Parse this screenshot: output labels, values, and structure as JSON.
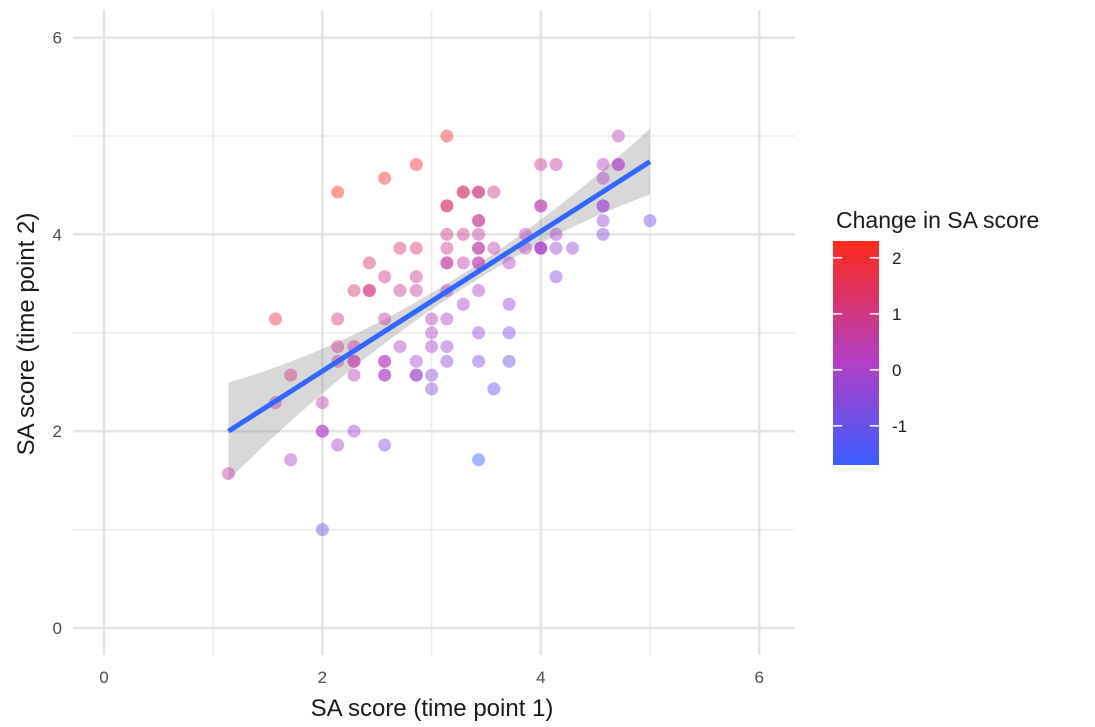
{
  "chart_data": {
    "type": "scatter",
    "xlabel": "SA score (time point 1)",
    "ylabel": "SA score (time point 2)",
    "xlim": [
      -0.2,
      6.2
    ],
    "ylim": [
      -0.3,
      6.2
    ],
    "xticks": [
      0,
      2,
      4,
      6
    ],
    "yticks": [
      0,
      2,
      4,
      6
    ],
    "grid": true,
    "legend": {
      "title": "Change in SA score",
      "position": "right",
      "type": "colorbar",
      "range": [
        -1.7,
        2.3
      ],
      "ticks": [
        2,
        1,
        0,
        -1
      ],
      "colors": {
        "low": "#3a5cff",
        "mid": "#b040c8",
        "high": "#ff2a1a"
      }
    },
    "points": [
      [
        1.14,
        1.57
      ],
      [
        1.57,
        2.29
      ],
      [
        1.57,
        3.14
      ],
      [
        1.71,
        2.57
      ],
      [
        1.71,
        1.71
      ],
      [
        2.0,
        2.29
      ],
      [
        2.0,
        2.0
      ],
      [
        2.0,
        2.0
      ],
      [
        2.0,
        1.0
      ],
      [
        2.14,
        4.43
      ],
      [
        2.14,
        3.14
      ],
      [
        2.14,
        2.86
      ],
      [
        2.14,
        2.71
      ],
      [
        2.14,
        1.86
      ],
      [
        2.29,
        3.43
      ],
      [
        2.29,
        2.86
      ],
      [
        2.29,
        2.71
      ],
      [
        2.29,
        2.71
      ],
      [
        2.29,
        2.57
      ],
      [
        2.29,
        2.0
      ],
      [
        2.43,
        3.71
      ],
      [
        2.43,
        3.43
      ],
      [
        2.43,
        3.43
      ],
      [
        2.57,
        4.57
      ],
      [
        2.57,
        3.57
      ],
      [
        2.57,
        3.14
      ],
      [
        2.57,
        2.71
      ],
      [
        2.57,
        2.71
      ],
      [
        2.57,
        2.57
      ],
      [
        2.57,
        2.57
      ],
      [
        2.57,
        1.86
      ],
      [
        2.71,
        3.86
      ],
      [
        2.71,
        3.43
      ],
      [
        2.71,
        2.86
      ],
      [
        2.86,
        4.71
      ],
      [
        2.86,
        3.86
      ],
      [
        2.86,
        3.57
      ],
      [
        2.86,
        3.43
      ],
      [
        2.86,
        2.71
      ],
      [
        2.86,
        2.57
      ],
      [
        2.86,
        2.57
      ],
      [
        3.0,
        3.14
      ],
      [
        3.0,
        3.0
      ],
      [
        3.0,
        2.86
      ],
      [
        3.0,
        2.57
      ],
      [
        3.0,
        2.43
      ],
      [
        3.14,
        5.0
      ],
      [
        3.14,
        4.29
      ],
      [
        3.14,
        4.29
      ],
      [
        3.14,
        4.0
      ],
      [
        3.14,
        3.86
      ],
      [
        3.14,
        3.71
      ],
      [
        3.14,
        3.71
      ],
      [
        3.14,
        3.43
      ],
      [
        3.14,
        3.14
      ],
      [
        3.14,
        2.86
      ],
      [
        3.14,
        2.71
      ],
      [
        3.29,
        4.43
      ],
      [
        3.29,
        4.43
      ],
      [
        3.29,
        4.0
      ],
      [
        3.29,
        3.71
      ],
      [
        3.29,
        3.29
      ],
      [
        3.43,
        4.43
      ],
      [
        3.43,
        4.43
      ],
      [
        3.43,
        4.14
      ],
      [
        3.43,
        4.14
      ],
      [
        3.43,
        4.0
      ],
      [
        3.43,
        3.86
      ],
      [
        3.43,
        3.86
      ],
      [
        3.43,
        3.71
      ],
      [
        3.43,
        3.71
      ],
      [
        3.43,
        3.43
      ],
      [
        3.43,
        3.0
      ],
      [
        3.43,
        2.71
      ],
      [
        3.43,
        1.71
      ],
      [
        3.57,
        4.43
      ],
      [
        3.57,
        3.86
      ],
      [
        3.57,
        2.43
      ],
      [
        3.71,
        3.71
      ],
      [
        3.71,
        3.29
      ],
      [
        3.71,
        3.0
      ],
      [
        3.71,
        2.71
      ],
      [
        3.86,
        4.0
      ],
      [
        3.86,
        3.86
      ],
      [
        4.0,
        4.71
      ],
      [
        4.0,
        4.29
      ],
      [
        4.0,
        4.29
      ],
      [
        4.0,
        3.86
      ],
      [
        4.0,
        3.86
      ],
      [
        4.0,
        3.86
      ],
      [
        4.14,
        4.71
      ],
      [
        4.14,
        4.0
      ],
      [
        4.14,
        3.86
      ],
      [
        4.14,
        3.57
      ],
      [
        4.29,
        3.86
      ],
      [
        4.57,
        4.71
      ],
      [
        4.57,
        4.57
      ],
      [
        4.57,
        4.29
      ],
      [
        4.57,
        4.29
      ],
      [
        4.57,
        4.14
      ],
      [
        4.57,
        4.0
      ],
      [
        4.71,
        5.0
      ],
      [
        4.71,
        4.71
      ],
      [
        4.71,
        4.71
      ],
      [
        5.0,
        4.14
      ]
    ],
    "trend_line": {
      "type": "linear fit",
      "color": "#3366ff",
      "from": [
        1.14,
        2.0
      ],
      "to": [
        5.0,
        4.74
      ],
      "confidence_band": true
    }
  }
}
